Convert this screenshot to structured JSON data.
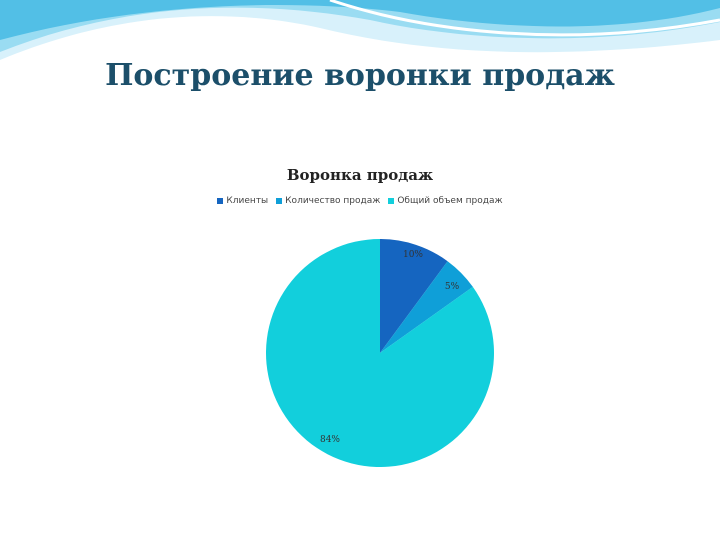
{
  "slide": {
    "title": "Построение воронки продаж"
  },
  "colors": {
    "wave_light": "#d8f1fb",
    "wave_mid": "#9adcf2",
    "wave_dark": "#52bfe6",
    "title": "#1c4f6a"
  },
  "chart_data": {
    "type": "pie",
    "title": "Воронка продаж",
    "legend_position": "top",
    "slices": [
      {
        "name": "Клиенты",
        "value": 10,
        "label": "10%",
        "color": "#1565c0"
      },
      {
        "name": "Количество продаж",
        "value": 5,
        "label": "5%",
        "color": "#0f9fd8"
      },
      {
        "name": "Общий объем продаж",
        "value": 84,
        "label": "84%",
        "color": "#12cfdc"
      }
    ]
  }
}
